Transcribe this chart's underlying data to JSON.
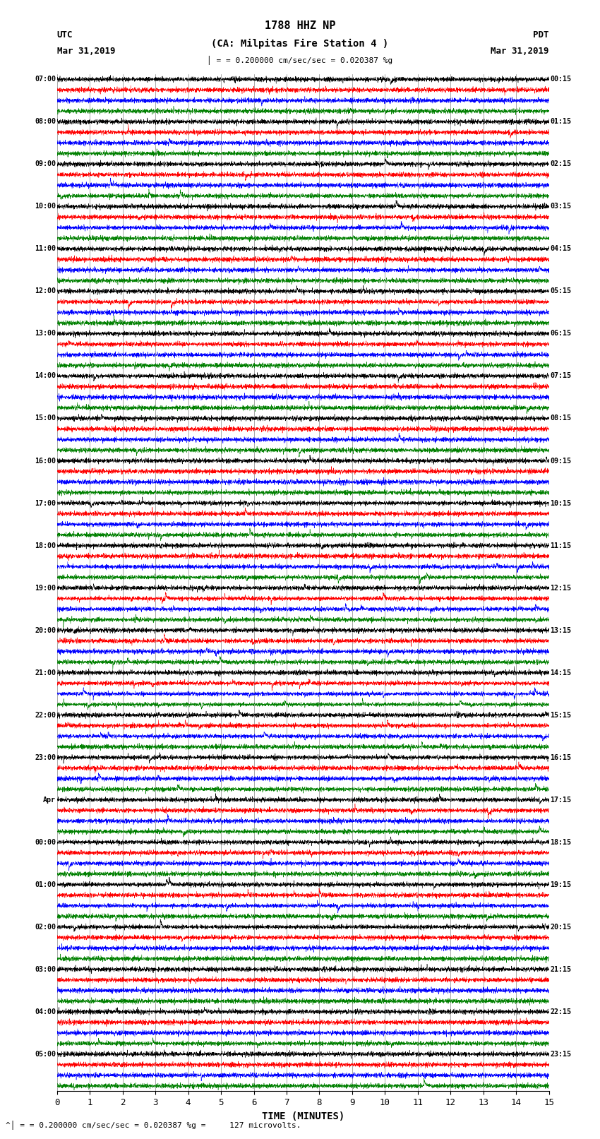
{
  "title_line1": "1788 HHZ NP",
  "title_line2": "(CA: Milpitas Fire Station 4 )",
  "utc_label": "UTC",
  "utc_date": "Mar 31,2019",
  "pdt_label": "PDT",
  "pdt_date": "Mar 31,2019",
  "scale_text": "= 0.200000 cm/sec/sec = 0.020387 %g",
  "bottom_text": "= 0.200000 cm/sec/sec = 0.020387 %g =     127 microvolts.",
  "xlabel": "TIME (MINUTES)",
  "xmin": 0,
  "xmax": 15,
  "xticks": [
    0,
    1,
    2,
    3,
    4,
    5,
    6,
    7,
    8,
    9,
    10,
    11,
    12,
    13,
    14,
    15
  ],
  "colors": [
    "black",
    "red",
    "blue",
    "green"
  ],
  "background_color": "#ffffff",
  "n_rows": 96,
  "left_times": [
    "07:00",
    "",
    "",
    "",
    "08:00",
    "",
    "",
    "",
    "09:00",
    "",
    "",
    "",
    "10:00",
    "",
    "",
    "",
    "11:00",
    "",
    "",
    "",
    "12:00",
    "",
    "",
    "",
    "13:00",
    "",
    "",
    "",
    "14:00",
    "",
    "",
    "",
    "15:00",
    "",
    "",
    "",
    "16:00",
    "",
    "",
    "",
    "17:00",
    "",
    "",
    "",
    "18:00",
    "",
    "",
    "",
    "19:00",
    "",
    "",
    "",
    "20:00",
    "",
    "",
    "",
    "21:00",
    "",
    "",
    "",
    "22:00",
    "",
    "",
    "",
    "23:00",
    "",
    "",
    "",
    "Apr",
    "",
    "",
    "",
    "00:00",
    "",
    "",
    "",
    "01:00",
    "",
    "",
    "",
    "02:00",
    "",
    "",
    "",
    "03:00",
    "",
    "",
    "",
    "04:00",
    "",
    "",
    "",
    "05:00",
    "",
    "",
    ""
  ],
  "right_times": [
    "00:15",
    "",
    "",
    "",
    "01:15",
    "",
    "",
    "",
    "02:15",
    "",
    "",
    "",
    "03:15",
    "",
    "",
    "",
    "04:15",
    "",
    "",
    "",
    "05:15",
    "",
    "",
    "",
    "06:15",
    "",
    "",
    "",
    "07:15",
    "",
    "",
    "",
    "08:15",
    "",
    "",
    "",
    "09:15",
    "",
    "",
    "",
    "10:15",
    "",
    "",
    "",
    "11:15",
    "",
    "",
    "",
    "12:15",
    "",
    "",
    "",
    "13:15",
    "",
    "",
    "",
    "14:15",
    "",
    "",
    "",
    "15:15",
    "",
    "",
    "",
    "16:15",
    "",
    "",
    "",
    "17:15",
    "",
    "",
    "",
    "18:15",
    "",
    "",
    "",
    "19:15",
    "",
    "",
    "",
    "20:15",
    "",
    "",
    "",
    "21:15",
    "",
    "",
    "",
    "22:15",
    "",
    "",
    "",
    "23:15",
    "",
    "",
    ""
  ],
  "noise_profile": [
    0.1,
    0.1,
    0.1,
    0.1,
    0.1,
    0.1,
    0.1,
    0.1,
    0.12,
    0.14,
    0.12,
    0.1,
    0.12,
    0.12,
    0.12,
    0.1,
    0.1,
    0.1,
    0.1,
    0.1,
    0.1,
    0.3,
    0.22,
    0.1,
    0.1,
    0.1,
    0.1,
    0.1,
    0.14,
    0.1,
    0.1,
    0.1,
    0.1,
    0.1,
    0.1,
    0.1,
    0.1,
    0.1,
    0.1,
    0.1,
    0.14,
    0.22,
    0.2,
    0.17,
    0.2,
    0.25,
    0.28,
    0.3,
    0.33,
    0.38,
    0.35,
    0.33,
    0.4,
    0.45,
    0.42,
    0.4,
    0.48,
    0.52,
    0.5,
    0.48,
    0.44,
    0.42,
    0.4,
    0.38,
    0.33,
    0.3,
    0.28,
    0.25,
    0.22,
    0.2,
    0.17,
    0.14,
    0.2,
    0.25,
    0.22,
    0.2,
    0.28,
    0.32,
    0.3,
    0.28,
    0.22,
    0.2,
    0.17,
    0.14,
    0.12,
    0.12,
    0.12,
    0.1,
    0.1,
    0.1,
    0.1,
    0.1,
    0.1,
    0.1,
    0.1,
    0.1
  ]
}
